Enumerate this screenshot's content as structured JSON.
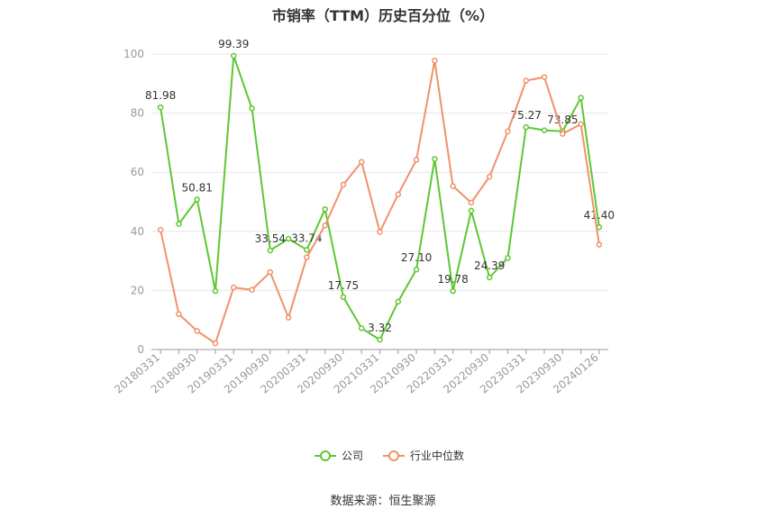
{
  "chart_data": {
    "type": "line",
    "title": "市销率（TTM）历史百分位（%）",
    "source": "数据来源：恒生聚源",
    "ylim": [
      0,
      100
    ],
    "yticks": [
      0,
      20,
      40,
      60,
      80,
      100
    ],
    "grid": true,
    "legend_position": "bottom",
    "categories": [
      "20180331",
      "20180630",
      "20180930",
      "20181231",
      "20190331",
      "20190630",
      "20190930",
      "20191231",
      "20200331",
      "20200630",
      "20200930",
      "20201231",
      "20210331",
      "20210630",
      "20210930",
      "20211231",
      "20220331",
      "20220630",
      "20220930",
      "20221231",
      "20230331",
      "20230630",
      "20230930",
      "20231231",
      "20240126"
    ],
    "x_tick_labels": [
      "20180331",
      "20180930",
      "20190331",
      "20190930",
      "20200331",
      "20200930",
      "20210331",
      "20210930",
      "20220331",
      "20220930",
      "20230331",
      "20230930",
      "20240126"
    ],
    "series": [
      {
        "name": "公司",
        "color": "#5ec732",
        "values": [
          81.98,
          42.5,
          50.81,
          19.8,
          99.39,
          81.6,
          33.54,
          37.5,
          33.74,
          47.5,
          17.75,
          7.2,
          3.32,
          16.2,
          27.1,
          64.5,
          19.78,
          47.0,
          24.39,
          31.0,
          75.27,
          74.2,
          73.85,
          85.2,
          41.4
        ],
        "labels": {
          "0": "81.98",
          "2": "50.81",
          "4": "99.39",
          "6": "33.54",
          "8": "33.74",
          "10": "17.75",
          "12": "3.32",
          "14": "27.10",
          "16": "19.78",
          "18": "24.39",
          "20": "75.27",
          "22": "73.85",
          "24": "41.40"
        }
      },
      {
        "name": "行业中位数",
        "color": "#f0926a",
        "values": [
          40.5,
          12.0,
          6.3,
          2.1,
          21.0,
          20.2,
          26.2,
          10.8,
          31.2,
          42.0,
          55.8,
          63.5,
          39.8,
          52.5,
          64.2,
          97.8,
          55.3,
          49.7,
          58.5,
          73.8,
          91.0,
          92.2,
          73.0,
          76.3,
          35.5
        ]
      }
    ]
  }
}
